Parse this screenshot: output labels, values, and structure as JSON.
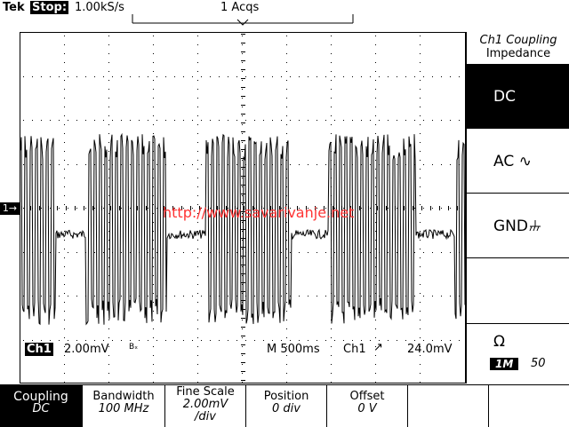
{
  "header": {
    "brand": "Tek",
    "state": "Stop:",
    "sample_rate": "1.00kS/s",
    "acquisitions": "1 Acqs"
  },
  "channel_marker": "1→",
  "watermark": "http://www.savarivanje.net",
  "status_line": {
    "channel": "Ch1",
    "volts_div": "2.00mV",
    "bw_flag": "Bₓ",
    "timebase": "M 500ms",
    "trigger_source": "Ch1",
    "trigger_slope": "↗",
    "trigger_level": "24.0mV"
  },
  "side_menu": {
    "title_line1": "Ch1 Coupling",
    "title_line2": "Impedance",
    "options": [
      "DC",
      "AC ∿",
      "GND"
    ],
    "selected": "DC",
    "impedance_symbol": "Ω",
    "impedance_1m": "1M",
    "impedance_50": "50"
  },
  "bottom_menu": [
    {
      "label": "Coupling",
      "value": "DC"
    },
    {
      "label": "Bandwidth",
      "value": "100 MHz"
    },
    {
      "label": "Fine Scale",
      "value": "2.00mV\n/div"
    },
    {
      "label": "Position",
      "value": "0 div"
    },
    {
      "label": "Offset",
      "value": "0 V"
    },
    {
      "label": "",
      "value": ""
    },
    {
      "label": "",
      "value": ""
    }
  ]
}
